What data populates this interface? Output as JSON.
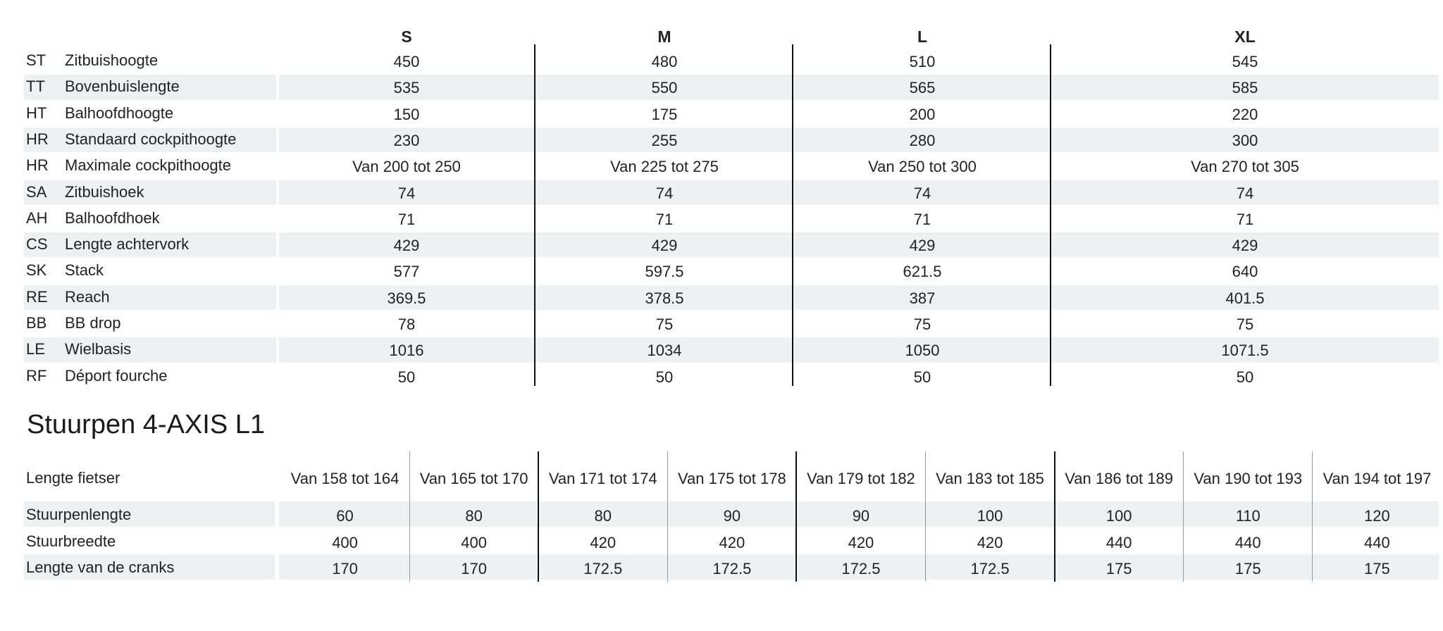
{
  "geometry": {
    "title": "",
    "columns": [
      "S",
      "M",
      "L",
      "XL"
    ],
    "rows": [
      {
        "code": "ST",
        "label": "Zitbuishoogte",
        "values": [
          "450",
          "480",
          "510",
          "545"
        ]
      },
      {
        "code": "TT",
        "label": "Bovenbuislengte",
        "values": [
          "535",
          "550",
          "565",
          "585"
        ]
      },
      {
        "code": "HT",
        "label": "Balhoofdhoogte",
        "values": [
          "150",
          "175",
          "200",
          "220"
        ]
      },
      {
        "code": "HR",
        "label": "Standaard cockpithoogte",
        "values": [
          "230",
          "255",
          "280",
          "300"
        ]
      },
      {
        "code": "HR",
        "label": "Maximale cockpithoogte",
        "values": [
          "Van 200 tot 250",
          "Van 225 tot 275",
          "Van 250 tot 300",
          "Van 270 tot 305"
        ]
      },
      {
        "code": "SA",
        "label": "Zitbuishoek",
        "values": [
          "74",
          "74",
          "74",
          "74"
        ]
      },
      {
        "code": "AH",
        "label": "Balhoofdhoek",
        "values": [
          "71",
          "71",
          "71",
          "71"
        ]
      },
      {
        "code": "CS",
        "label": "Lengte achtervork",
        "values": [
          "429",
          "429",
          "429",
          "429"
        ]
      },
      {
        "code": "SK",
        "label": "Stack",
        "values": [
          "577",
          "597.5",
          "621.5",
          "640"
        ]
      },
      {
        "code": "RE",
        "label": "Reach",
        "values": [
          "369.5",
          "378.5",
          "387",
          "401.5"
        ]
      },
      {
        "code": "BB",
        "label": "BB drop",
        "values": [
          "78",
          "75",
          "75",
          "75"
        ]
      },
      {
        "code": "LE",
        "label": "Wielbasis",
        "values": [
          "1016",
          "1034",
          "1050",
          "1071.5"
        ]
      },
      {
        "code": "RF",
        "label": "Déport fourche",
        "values": [
          "50",
          "50",
          "50",
          "50"
        ]
      }
    ]
  },
  "stem": {
    "title": "Stuurpen 4-AXIS L1",
    "header_label": "Lengte fietser",
    "columns": [
      "Van 158 tot 164",
      "Van 165 tot 170",
      "Van 171 tot 174",
      "Van 175 tot 178",
      "Van 179 tot 182",
      "Van 183 tot 185",
      "Van 186 tot 189",
      "Van 190 tot 193",
      "Van 194 tot 197"
    ],
    "rows": [
      {
        "label": "Stuurpenlengte",
        "values": [
          "60",
          "80",
          "80",
          "90",
          "90",
          "100",
          "100",
          "110",
          "120"
        ]
      },
      {
        "label": "Stuurbreedte",
        "values": [
          "400",
          "400",
          "420",
          "420",
          "420",
          "420",
          "440",
          "440",
          "440"
        ]
      },
      {
        "label": "Lengte van de cranks",
        "values": [
          "170",
          "170",
          "172.5",
          "172.5",
          "172.5",
          "172.5",
          "175",
          "175",
          "175"
        ]
      }
    ]
  },
  "colors": {
    "stripe": "#eef0f1",
    "rule": "#111111",
    "text": "#222222"
  }
}
